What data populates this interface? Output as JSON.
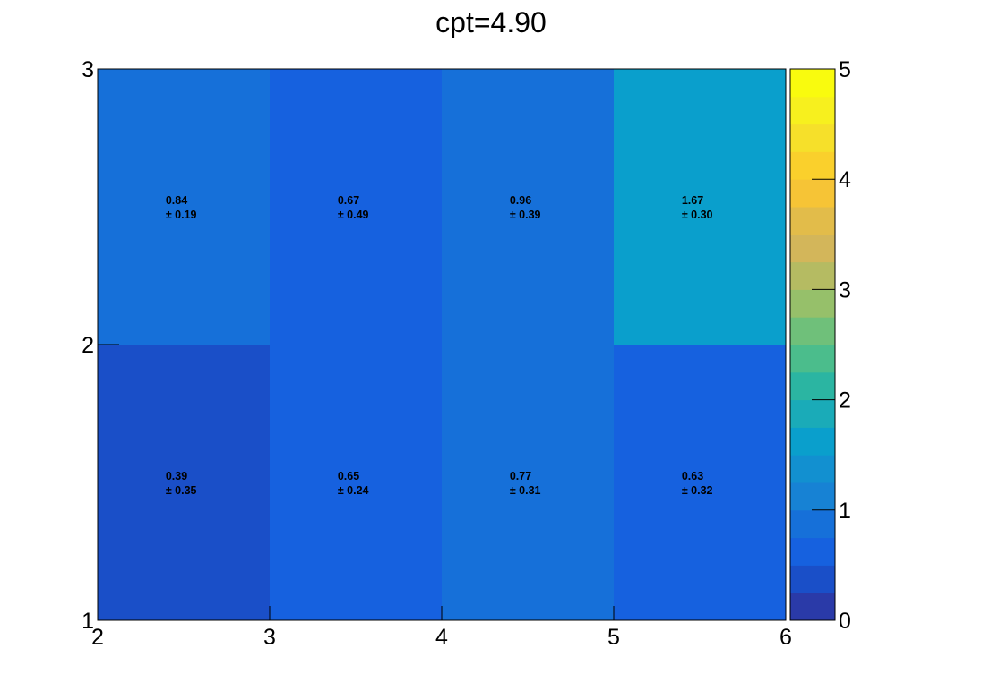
{
  "chart_data": {
    "type": "heatmap",
    "title": "cpt=4.90",
    "xlabel": "",
    "ylabel": "",
    "x_edges": [
      2,
      3,
      4,
      5,
      6
    ],
    "y_edges": [
      1,
      2,
      3
    ],
    "x_tick_labels": [
      "2",
      "3",
      "4",
      "5",
      "6"
    ],
    "y_tick_labels": [
      "1",
      "2",
      "3"
    ],
    "xlim": [
      2,
      6
    ],
    "ylim": [
      1,
      3
    ],
    "zlim": [
      0,
      5
    ],
    "cells": [
      {
        "x": 2.5,
        "y": 1.5,
        "value": 0.39,
        "error": 0.35,
        "value_label": "0.39",
        "error_label": "± 0.35"
      },
      {
        "x": 3.5,
        "y": 1.5,
        "value": 0.65,
        "error": 0.24,
        "value_label": "0.65",
        "error_label": "± 0.24"
      },
      {
        "x": 4.5,
        "y": 1.5,
        "value": 0.77,
        "error": 0.31,
        "value_label": "0.77",
        "error_label": "± 0.31"
      },
      {
        "x": 5.5,
        "y": 1.5,
        "value": 0.63,
        "error": 0.32,
        "value_label": "0.63",
        "error_label": "± 0.32"
      },
      {
        "x": 2.5,
        "y": 2.5,
        "value": 0.84,
        "error": 0.19,
        "value_label": "0.84",
        "error_label": "± 0.19"
      },
      {
        "x": 3.5,
        "y": 2.5,
        "value": 0.67,
        "error": 0.49,
        "value_label": "0.67",
        "error_label": "± 0.49"
      },
      {
        "x": 4.5,
        "y": 2.5,
        "value": 0.96,
        "error": 0.39,
        "value_label": "0.96",
        "error_label": "± 0.39"
      },
      {
        "x": 5.5,
        "y": 2.5,
        "value": 1.67,
        "error": 0.3,
        "value_label": "1.67",
        "error_label": "± 0.30"
      }
    ],
    "colorbar": {
      "ticks": [
        0,
        1,
        2,
        3,
        4,
        5
      ],
      "tick_labels": [
        "0",
        "1",
        "2",
        "3",
        "4",
        "5"
      ],
      "colors": [
        "#2a3aa8",
        "#1a4fc8",
        "#1661df",
        "#1670d9",
        "#1782d4",
        "#1290d0",
        "#0a9fcc",
        "#1aabb8",
        "#2bb5a2",
        "#4bbd8c",
        "#6fc07a",
        "#96c06a",
        "#b5bb62",
        "#d3b65a",
        "#e2bc4a",
        "#f6c436",
        "#fad02c",
        "#f6e02a",
        "#f7f01e",
        "#f9fb0e"
      ]
    }
  }
}
